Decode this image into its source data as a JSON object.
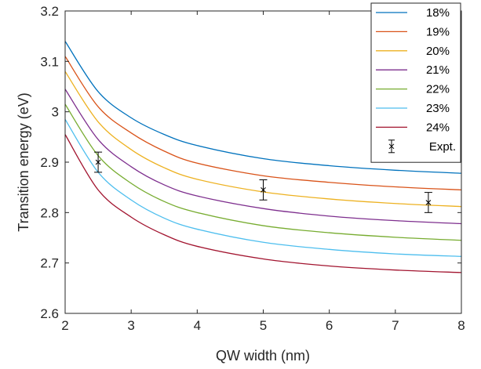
{
  "chart_data": {
    "type": "line",
    "title": "",
    "xlabel": "QW width (nm)",
    "ylabel": "Transition energy (eV)",
    "xlim": [
      2,
      8
    ],
    "ylim": [
      2.6,
      3.2
    ],
    "xticks": [
      "2",
      "3",
      "4",
      "5",
      "6",
      "7",
      "8"
    ],
    "yticks": [
      "2.6",
      "2.7",
      "2.8",
      "2.9",
      "3",
      "3.1",
      "3.2"
    ],
    "grid": false,
    "legend_position": "top-right",
    "x": [
      2,
      2.5,
      3,
      3.5,
      4,
      5,
      6,
      7,
      8
    ],
    "series": [
      {
        "name": "18%",
        "color": "#0072BD",
        "y": [
          3.14,
          3.04,
          2.988,
          2.955,
          2.933,
          2.907,
          2.893,
          2.884,
          2.878
        ]
      },
      {
        "name": "19%",
        "color": "#D95319",
        "y": [
          3.11,
          3.01,
          2.958,
          2.922,
          2.898,
          2.873,
          2.86,
          2.851,
          2.845
        ]
      },
      {
        "name": "20%",
        "color": "#EDB120",
        "y": [
          3.08,
          2.98,
          2.925,
          2.889,
          2.866,
          2.841,
          2.827,
          2.818,
          2.812
        ]
      },
      {
        "name": "21%",
        "color": "#7E2F8E",
        "y": [
          3.045,
          2.945,
          2.891,
          2.855,
          2.833,
          2.808,
          2.793,
          2.784,
          2.778
        ]
      },
      {
        "name": "22%",
        "color": "#77AC30",
        "y": [
          3.015,
          2.913,
          2.858,
          2.822,
          2.8,
          2.774,
          2.76,
          2.751,
          2.745
        ]
      },
      {
        "name": "23%",
        "color": "#4DBEEE",
        "y": [
          2.985,
          2.88,
          2.825,
          2.789,
          2.767,
          2.741,
          2.727,
          2.718,
          2.713
        ]
      },
      {
        "name": "24%",
        "color": "#A2142F",
        "y": [
          2.955,
          2.845,
          2.791,
          2.756,
          2.733,
          2.708,
          2.694,
          2.686,
          2.681
        ]
      }
    ],
    "experiment": {
      "name": "Expt.",
      "color": "#000000",
      "points": [
        {
          "x": 2.5,
          "y": 2.9,
          "err": 0.02
        },
        {
          "x": 5.0,
          "y": 2.845,
          "err": 0.02
        },
        {
          "x": 7.5,
          "y": 2.82,
          "err": 0.02
        }
      ]
    }
  }
}
